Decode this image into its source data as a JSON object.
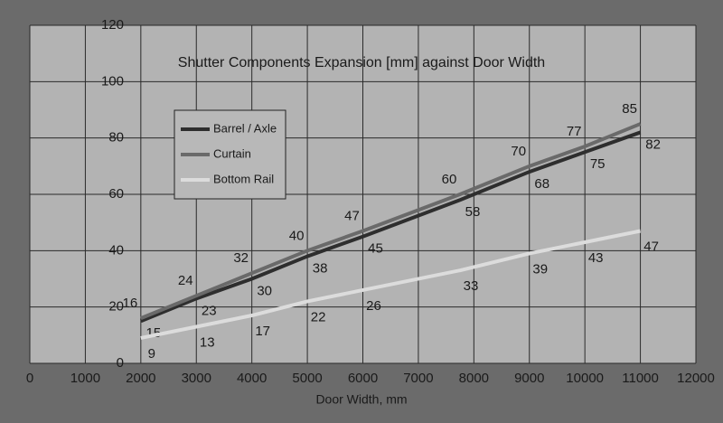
{
  "chart_data": {
    "type": "line",
    "title": "Shutter Components Expansion [mm] against Door Width",
    "x_label": "Door Width, mm",
    "x": [
      2000,
      3000,
      4000,
      5000,
      6000,
      7750,
      9000,
      10000,
      11000
    ],
    "series": [
      {
        "name": "Barrel / Axle",
        "color": "#2e2e2e",
        "values": [
          15,
          23,
          30,
          38,
          45,
          58,
          68,
          75,
          82
        ]
      },
      {
        "name": "Curtain",
        "color": "#6a6a6a",
        "values": [
          16,
          24,
          32,
          40,
          47,
          60,
          70,
          77,
          85
        ]
      },
      {
        "name": "Bottom Rail",
        "color": "#dcdcdc",
        "values": [
          9,
          13,
          17,
          22,
          26,
          33,
          39,
          43,
          47
        ]
      }
    ],
    "xlim": [
      0,
      12000
    ],
    "xticks": [
      0,
      1000,
      2000,
      3000,
      4000,
      5000,
      6000,
      7000,
      8000,
      9000,
      10000,
      11000,
      12000
    ],
    "ylim": [
      0,
      120
    ],
    "yticks": [
      0,
      20,
      40,
      60,
      80,
      100,
      120
    ],
    "grid": true
  }
}
